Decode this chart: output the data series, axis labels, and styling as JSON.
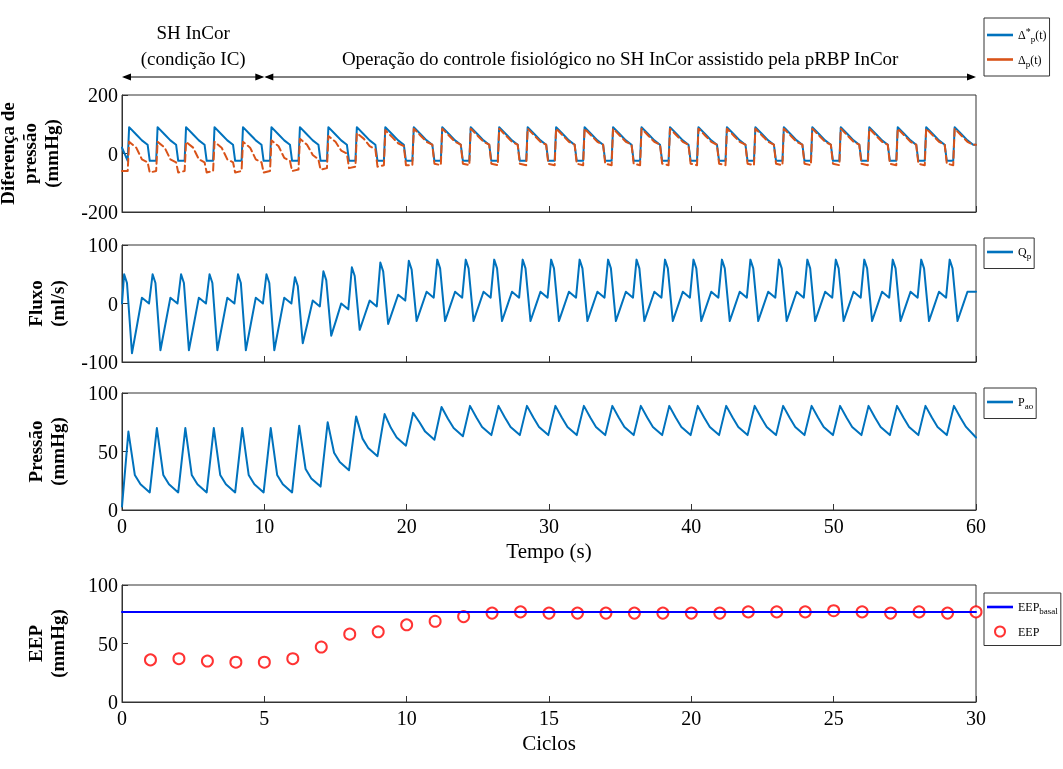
{
  "chart_data": [
    {
      "type": "line",
      "ylabel": "Diferença de\npressão\n(mmHg)",
      "xlim": [
        0,
        60
      ],
      "xticks": [
        0,
        10,
        20,
        30,
        40,
        50,
        60
      ],
      "ylim": [
        -200,
        200
      ],
      "yticks": [
        -200,
        0,
        200
      ],
      "tick_labels": "y",
      "legend": "right",
      "annotations": [
        "SH InCor\n(condição IC)",
        "Operação do controle fisiológico no SH InCor assistido pela pRBP InCor"
      ],
      "x": [
        0,
        0.4,
        0.5,
        1,
        1.4,
        1.8,
        1.95,
        2.4,
        2.5,
        3,
        3.4,
        3.8,
        3.95,
        4.4,
        4.5,
        5,
        5.4,
        5.8,
        5.95,
        6.4,
        6.5,
        7,
        7.4,
        7.8,
        7.95,
        8.4,
        8.5,
        9,
        9.4,
        9.8,
        9.95,
        10.4,
        10.5,
        11,
        11.4,
        11.8,
        11.95,
        12.4,
        12.5,
        13,
        13.4,
        13.8,
        13.95,
        14.4,
        14.5,
        15,
        15.4,
        15.8,
        15.95,
        16.4,
        16.5,
        17,
        17.4,
        17.8,
        17.95,
        18.4,
        18.5,
        19,
        19.4,
        19.8,
        19.95,
        20.4,
        20.5,
        21,
        21.4,
        21.8,
        21.95,
        22.4,
        22.5,
        23,
        23.4,
        23.8,
        23.95,
        24.4,
        24.5,
        25,
        25.4,
        25.8,
        25.95,
        26.4,
        26.5,
        27,
        27.4,
        27.8,
        27.95,
        28.4,
        28.5,
        29,
        29.4,
        29.8,
        29.95,
        30.4,
        30.5,
        31,
        31.4,
        31.8,
        31.95,
        32.4,
        32.5,
        33,
        33.4,
        33.8,
        33.95,
        34.4,
        34.5,
        35,
        35.4,
        35.8,
        35.95,
        36.4,
        36.5,
        37,
        37.4,
        37.8,
        37.95,
        38.4,
        38.5,
        39,
        39.4,
        39.8,
        39.95,
        40.4,
        40.5,
        41,
        41.4,
        41.8,
        41.95,
        42.4,
        42.5,
        43,
        43.4,
        43.8,
        43.95,
        44.4,
        44.5,
        45,
        45.4,
        45.8,
        45.95,
        46.4,
        46.5,
        47,
        47.4,
        47.8,
        47.95,
        48.4,
        48.5,
        49,
        49.4,
        49.8,
        49.95,
        50.4,
        50.5,
        51,
        51.4,
        51.8,
        51.95,
        52.4,
        52.5,
        53,
        53.4,
        53.8,
        53.95,
        54.4,
        54.5,
        55,
        55.4,
        55.8,
        55.95,
        56.4,
        56.5,
        57,
        57.4,
        57.8,
        57.95,
        58.4,
        58.5,
        59,
        59.4,
        59.8,
        60
      ],
      "series": [
        {
          "name": "Δ$^{*}$$_{p}$(t)",
          "color": "#0072bd",
          "line_style": "solid",
          "values": [
            20,
            -25,
            90,
            65,
            45,
            30,
            -25,
            -25,
            90,
            65,
            45,
            30,
            -25,
            -25,
            90,
            65,
            45,
            30,
            -25,
            -25,
            90,
            65,
            45,
            30,
            -25,
            -25,
            90,
            65,
            45,
            30,
            -25,
            -25,
            90,
            65,
            45,
            30,
            -25,
            -25,
            90,
            65,
            45,
            30,
            -25,
            -25,
            90,
            65,
            45,
            30,
            -25,
            -25,
            90,
            65,
            45,
            30,
            -25,
            -25,
            90,
            65,
            45,
            30,
            -25,
            -25,
            90,
            65,
            45,
            30,
            -25,
            -25,
            90,
            65,
            45,
            30,
            -25,
            -25,
            90,
            65,
            45,
            30,
            -25,
            -25,
            90,
            65,
            45,
            30,
            -25,
            -25,
            90,
            65,
            45,
            30,
            -25,
            -25,
            90,
            65,
            45,
            30,
            -25,
            -25,
            90,
            65,
            45,
            30,
            -25,
            -25,
            90,
            65,
            45,
            30,
            -25,
            -25,
            90,
            65,
            45,
            30,
            -25,
            -25,
            90,
            65,
            45,
            30,
            -25,
            -25,
            90,
            65,
            45,
            30,
            -25,
            -25,
            90,
            65,
            45,
            30,
            -25,
            -25,
            90,
            65,
            45,
            30,
            -25,
            -25,
            90,
            65,
            45,
            30,
            -25,
            -25,
            90,
            65,
            45,
            30,
            -25,
            -25,
            90,
            65,
            45,
            30,
            -25,
            -25,
            90,
            65,
            45,
            30,
            -25,
            -25,
            90,
            65,
            45,
            30,
            -25,
            -25,
            90,
            65,
            45,
            30,
            -25,
            -25,
            90,
            65,
            45,
            30,
            30
          ]
        },
        {
          "name": "Δ$_{p}$(t)",
          "color": "#d95319",
          "line_style": "dashed",
          "values": [
            -60,
            -60,
            40,
            20,
            -20,
            -30,
            -65,
            -60,
            40,
            20,
            -20,
            -30,
            -65,
            -60,
            40,
            20,
            -20,
            -30,
            -65,
            -60,
            40,
            20,
            -20,
            -30,
            -65,
            -60,
            40,
            20,
            -20,
            -30,
            -65,
            -60,
            45,
            25,
            -15,
            -25,
            -60,
            -55,
            50,
            30,
            -5,
            -20,
            -55,
            -50,
            60,
            40,
            10,
            0,
            -50,
            -45,
            70,
            50,
            25,
            15,
            -45,
            -40,
            80,
            55,
            35,
            25,
            -40,
            -40,
            85,
            60,
            40,
            30,
            -35,
            -40,
            85,
            60,
            40,
            30,
            -35,
            -40,
            85,
            60,
            40,
            30,
            -35,
            -40,
            85,
            60,
            40,
            30,
            -35,
            -40,
            85,
            60,
            40,
            30,
            -35,
            -40,
            85,
            60,
            40,
            30,
            -35,
            -40,
            85,
            60,
            40,
            30,
            -35,
            -40,
            85,
            60,
            40,
            30,
            -35,
            -40,
            85,
            60,
            40,
            30,
            -35,
            -40,
            85,
            60,
            40,
            30,
            -35,
            -40,
            85,
            60,
            40,
            30,
            -35,
            -40,
            85,
            60,
            40,
            30,
            -35,
            -40,
            85,
            60,
            40,
            30,
            -35,
            -40,
            85,
            60,
            40,
            30,
            -35,
            -40,
            85,
            60,
            40,
            30,
            -35,
            -40,
            85,
            60,
            40,
            30,
            -35,
            -40,
            85,
            60,
            40,
            30,
            -35,
            -40,
            85,
            60,
            40,
            30,
            -35,
            -40,
            85,
            60,
            40,
            30,
            -35,
            -40,
            85,
            60,
            40,
            30,
            30
          ]
        }
      ]
    },
    {
      "type": "line",
      "ylabel": "Fluxo\n(ml/s)",
      "xlim": [
        0,
        60
      ],
      "xticks": [
        0,
        10,
        20,
        30,
        40,
        50,
        60
      ],
      "ylim": [
        -100,
        100
      ],
      "yticks": [
        -100,
        0,
        100
      ],
      "tick_labels": "y",
      "legend": "right",
      "x": [
        0,
        0.15,
        0.35,
        0.7,
        1.05,
        1.4,
        1.9,
        2.15,
        2.35,
        2.7,
        3.05,
        3.4,
        3.9,
        4.15,
        4.35,
        4.7,
        5.05,
        5.4,
        5.9,
        6.15,
        6.35,
        6.7,
        7.05,
        7.4,
        7.9,
        8.15,
        8.35,
        8.7,
        9.05,
        9.4,
        9.9,
        10.15,
        10.35,
        10.7,
        11.05,
        11.4,
        11.9,
        12.15,
        12.35,
        12.7,
        13.05,
        13.4,
        13.9,
        14.15,
        14.35,
        14.7,
        15.05,
        15.4,
        15.9,
        16.15,
        16.35,
        16.7,
        17.05,
        17.4,
        17.9,
        18.15,
        18.35,
        18.7,
        19.05,
        19.4,
        19.9,
        20.15,
        20.35,
        20.7,
        21.05,
        21.4,
        21.9,
        22.15,
        22.35,
        22.7,
        23.05,
        23.4,
        23.9,
        24.15,
        24.35,
        24.7,
        25.05,
        25.4,
        25.9,
        26.15,
        26.35,
        26.7,
        27.05,
        27.4,
        27.9,
        28.15,
        28.35,
        28.7,
        29.05,
        29.4,
        29.9,
        30.15,
        30.35,
        30.7,
        31.05,
        31.4,
        31.9,
        32.15,
        32.35,
        32.7,
        33.05,
        33.4,
        33.9,
        34.15,
        34.35,
        34.7,
        35.05,
        35.4,
        35.9,
        36.15,
        36.35,
        36.7,
        37.05,
        37.4,
        37.9,
        38.15,
        38.35,
        38.7,
        39.05,
        39.4,
        39.9,
        40.15,
        40.35,
        40.7,
        41.05,
        41.4,
        41.9,
        42.15,
        42.35,
        42.7,
        43.05,
        43.4,
        43.9,
        44.15,
        44.35,
        44.7,
        45.05,
        45.4,
        45.9,
        46.15,
        46.35,
        46.7,
        47.05,
        47.4,
        47.9,
        48.15,
        48.35,
        48.7,
        49.05,
        49.4,
        49.9,
        50.15,
        50.35,
        50.7,
        51.05,
        51.4,
        51.9,
        52.15,
        52.35,
        52.7,
        53.05,
        53.4,
        53.9,
        54.15,
        54.35,
        54.7,
        55.05,
        55.4,
        55.9,
        56.15,
        56.35,
        56.7,
        57.05,
        57.4,
        57.9,
        58.15,
        58.35,
        58.7,
        59.05,
        59.4,
        60
      ],
      "series": [
        {
          "name": "Q$_{p}$",
          "color": "#0072bd",
          "values": [
            0,
            50,
            35,
            -85,
            -38,
            10,
            0,
            50,
            35,
            -80,
            -35,
            10,
            0,
            50,
            35,
            -80,
            -35,
            10,
            0,
            50,
            35,
            -80,
            -35,
            10,
            0,
            50,
            35,
            -80,
            -35,
            10,
            0,
            50,
            35,
            -80,
            -35,
            10,
            0,
            45,
            30,
            -68,
            -32,
            5,
            -5,
            55,
            40,
            -55,
            -28,
            0,
            -10,
            62,
            47,
            -45,
            -20,
            5,
            -5,
            70,
            55,
            -35,
            -10,
            15,
            5,
            73,
            58,
            -30,
            -5,
            20,
            10,
            75,
            60,
            -30,
            -5,
            20,
            10,
            75,
            60,
            -30,
            -5,
            20,
            10,
            75,
            60,
            -30,
            -5,
            20,
            10,
            75,
            60,
            -30,
            -5,
            20,
            10,
            75,
            60,
            -30,
            -5,
            20,
            10,
            75,
            60,
            -30,
            -5,
            20,
            10,
            75,
            60,
            -30,
            -5,
            20,
            10,
            75,
            60,
            -30,
            -5,
            20,
            10,
            75,
            60,
            -30,
            -5,
            20,
            10,
            75,
            60,
            -30,
            -5,
            20,
            10,
            75,
            60,
            -30,
            -5,
            20,
            10,
            75,
            60,
            -30,
            -5,
            20,
            10,
            75,
            60,
            -30,
            -5,
            20,
            10,
            75,
            60,
            -30,
            -5,
            20,
            10,
            75,
            60,
            -30,
            -5,
            20,
            10,
            75,
            60,
            -30,
            -5,
            20,
            10,
            75,
            60,
            -30,
            -5,
            20,
            10,
            75,
            60,
            -30,
            -5,
            20,
            10,
            75,
            60,
            -30,
            -5,
            20,
            20
          ]
        }
      ]
    },
    {
      "type": "line",
      "ylabel": "Pressão\n(mmHg)",
      "xlabel": "Tempo (s)",
      "xlim": [
        0,
        60
      ],
      "xticks": [
        0,
        10,
        20,
        30,
        40,
        50,
        60
      ],
      "ylim": [
        0,
        100
      ],
      "yticks": [
        0,
        50,
        100
      ],
      "legend": "right",
      "x": [
        0,
        0.45,
        0.9,
        1.3,
        1.95,
        2.45,
        2.9,
        3.3,
        3.95,
        4.45,
        4.9,
        5.3,
        5.95,
        6.45,
        6.9,
        7.3,
        7.95,
        8.45,
        8.9,
        9.3,
        9.95,
        10.45,
        10.9,
        11.3,
        11.95,
        12.45,
        12.9,
        13.3,
        13.95,
        14.45,
        14.9,
        15.3,
        15.95,
        16.45,
        16.9,
        17.3,
        17.95,
        18.45,
        18.9,
        19.3,
        19.95,
        20.45,
        20.9,
        21.3,
        21.95,
        22.45,
        22.9,
        23.3,
        23.95,
        24.45,
        24.9,
        25.3,
        25.95,
        26.45,
        26.9,
        27.3,
        27.95,
        28.45,
        28.9,
        29.3,
        29.95,
        30.45,
        30.9,
        31.3,
        31.95,
        32.45,
        32.9,
        33.3,
        33.95,
        34.45,
        34.9,
        35.3,
        35.95,
        36.45,
        36.9,
        37.3,
        37.95,
        38.45,
        38.9,
        39.3,
        39.95,
        40.45,
        40.9,
        41.3,
        41.95,
        42.45,
        42.9,
        43.3,
        43.95,
        44.45,
        44.9,
        45.3,
        45.95,
        46.45,
        46.9,
        47.3,
        47.95,
        48.45,
        48.9,
        49.3,
        49.95,
        50.45,
        50.9,
        51.3,
        51.95,
        52.45,
        52.9,
        53.3,
        53.95,
        54.45,
        54.9,
        55.3,
        55.95,
        56.45,
        56.9,
        57.3,
        57.95,
        58.45,
        58.9,
        59.3,
        60
      ],
      "series": [
        {
          "name": "P$_{ao}$",
          "color": "#0072bd",
          "values": [
            3,
            67,
            30,
            22,
            15,
            70,
            30,
            22,
            15,
            70,
            30,
            22,
            15,
            70,
            30,
            22,
            15,
            70,
            30,
            22,
            15,
            70,
            30,
            22,
            15,
            72,
            35,
            27,
            20,
            75,
            49,
            41,
            34,
            80,
            61,
            53,
            46,
            82,
            70,
            62,
            55,
            83,
            75,
            67,
            60,
            88,
            78,
            70,
            63,
            89,
            79,
            71,
            64,
            89,
            79,
            71,
            64,
            89,
            79,
            71,
            64,
            89,
            79,
            71,
            64,
            89,
            79,
            71,
            64,
            89,
            79,
            71,
            64,
            89,
            79,
            71,
            64,
            89,
            79,
            71,
            64,
            89,
            79,
            71,
            64,
            89,
            79,
            71,
            64,
            89,
            79,
            71,
            64,
            89,
            79,
            71,
            64,
            89,
            79,
            71,
            64,
            89,
            79,
            71,
            64,
            89,
            79,
            71,
            64,
            89,
            79,
            71,
            64,
            89,
            79,
            71,
            64,
            89,
            79,
            71,
            62
          ]
        }
      ]
    },
    {
      "type": "line",
      "ylabel": "EEP\n(mmHg)",
      "xlabel": "Ciclos",
      "xlim": [
        0,
        30
      ],
      "xticks": [
        0,
        5,
        10,
        15,
        20,
        25,
        30
      ],
      "ylim": [
        0,
        100
      ],
      "yticks": [
        0,
        50,
        100
      ],
      "legend": "right",
      "series": [
        {
          "name": "EEP$_{basal}$",
          "color": "#0000ff",
          "x": [
            0,
            30
          ],
          "values": [
            77,
            77
          ]
        },
        {
          "name": "EEP",
          "type": "scatter",
          "marker": "circle",
          "color": "#ff0000",
          "x": [
            1,
            2,
            3,
            4,
            5,
            6,
            7,
            8,
            9,
            10,
            11,
            12,
            13,
            14,
            15,
            16,
            17,
            18,
            19,
            20,
            21,
            22,
            23,
            24,
            25,
            26,
            27,
            28,
            29,
            30
          ],
          "values": [
            36,
            37,
            35,
            34,
            34,
            37,
            47,
            58,
            60,
            66,
            69,
            73,
            76,
            77,
            76,
            76,
            76,
            76,
            76,
            76,
            76,
            77,
            77,
            77,
            78,
            77,
            76,
            77,
            76,
            77
          ]
        }
      ]
    }
  ]
}
